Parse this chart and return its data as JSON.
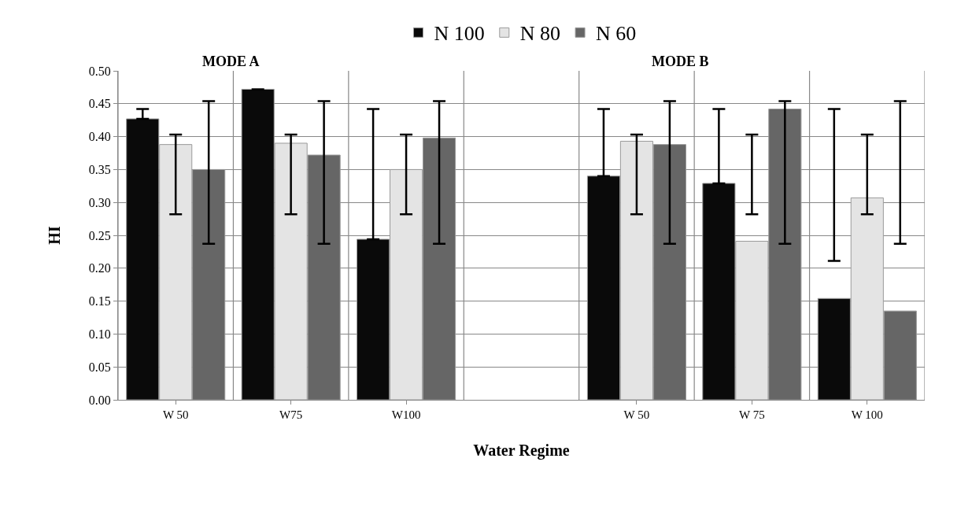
{
  "chart_data": {
    "type": "bar",
    "xlabel": "Water Regime",
    "ylabel": "HI",
    "annotations": [
      "MODE A",
      "MODE B"
    ],
    "categories": [
      "W 50",
      "W75",
      "W100",
      null,
      "W 50",
      "W 75",
      "W 100"
    ],
    "series": [
      {
        "name": "N 100",
        "color": "#0a0a0a",
        "values": [
          0.427,
          0.472,
          0.244,
          null,
          0.34,
          0.329,
          0.154
        ],
        "errors": [
          [
            0.427,
            0.442
          ],
          null,
          [
            0.244,
            0.442
          ],
          null,
          [
            0.34,
            0.442
          ],
          [
            0.329,
            0.442
          ],
          [
            0.211,
            0.442
          ]
        ]
      },
      {
        "name": "N 80",
        "color": "#e4e4e4",
        "values": [
          0.388,
          0.39,
          0.35,
          null,
          0.393,
          0.241,
          0.307
        ],
        "errors": [
          [
            0.282,
            0.403
          ],
          [
            0.282,
            0.403
          ],
          [
            0.282,
            0.403
          ],
          null,
          [
            0.282,
            0.403
          ],
          [
            0.282,
            0.403
          ],
          [
            0.282,
            0.403
          ]
        ]
      },
      {
        "name": "N 60",
        "color": "#666666",
        "values": [
          0.35,
          0.372,
          0.398,
          null,
          0.388,
          0.442,
          0.135
        ],
        "errors": [
          [
            0.237,
            0.454
          ],
          [
            0.237,
            0.454
          ],
          [
            0.237,
            0.454
          ],
          null,
          [
            0.237,
            0.454
          ],
          [
            0.237,
            0.454
          ],
          [
            0.237,
            0.454
          ]
        ]
      }
    ],
    "ylim": [
      0,
      0.5
    ],
    "yticks": [
      {
        "value": 0,
        "label": "0.00"
      },
      {
        "value": 0.05,
        "label": "0.05"
      },
      {
        "value": 0.1,
        "label": "0.10"
      },
      {
        "value": 0.15,
        "label": "0.15"
      },
      {
        "value": 0.2,
        "label": "0.20"
      },
      {
        "value": 0.25,
        "label": "0.25"
      },
      {
        "value": 0.3,
        "label": "0.30"
      },
      {
        "value": 0.35,
        "label": "0.35"
      },
      {
        "value": 0.4,
        "label": "0.40"
      },
      {
        "value": 0.45,
        "label": "0.45"
      },
      {
        "value": 0.5,
        "label": "0.50"
      }
    ],
    "grid": true,
    "legend": "top"
  }
}
